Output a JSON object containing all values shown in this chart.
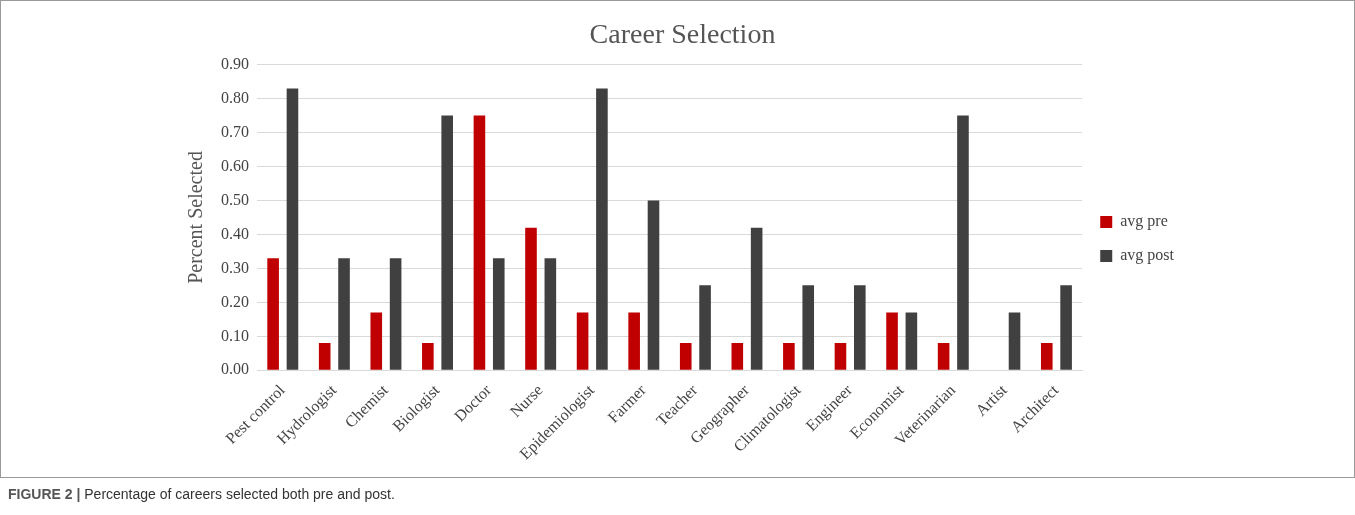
{
  "chart_data": {
    "type": "bar",
    "title": "Career Selection",
    "ylabel": "Percent Selected",
    "categories": [
      "Pest control",
      "Hydrologist",
      "Chemist",
      "Biologist",
      "Doctor",
      "Nurse",
      "Epidemiologist",
      "Farmer",
      "Teacher",
      "Geographer",
      "Climatologist",
      "Engineer",
      "Economist",
      "Veterinarian",
      "Artist",
      "Architect"
    ],
    "series": [
      {
        "name": "avg pre",
        "color": "#c00000",
        "values": [
          0.33,
          0.08,
          0.17,
          0.08,
          0.75,
          0.42,
          0.17,
          0.17,
          0.08,
          0.08,
          0.08,
          0.08,
          0.17,
          0.08,
          0,
          0.08
        ]
      },
      {
        "name": "avg post",
        "color": "#404040",
        "values": [
          0.83,
          0.33,
          0.33,
          0.75,
          0.33,
          0.33,
          0.83,
          0.5,
          0.25,
          0.42,
          0.25,
          0.25,
          0.17,
          0.75,
          0.17,
          0.25
        ]
      }
    ],
    "ylim": [
      0,
      0.9
    ],
    "yticks": [
      {
        "value": 0,
        "label": "0.00"
      },
      {
        "value": 0.1,
        "label": "0.10"
      },
      {
        "value": 0.2,
        "label": "0.20"
      },
      {
        "value": 0.3,
        "label": "0.30"
      },
      {
        "value": 0.4,
        "label": "0.40"
      },
      {
        "value": 0.5,
        "label": "0.50"
      },
      {
        "value": 0.6,
        "label": "0.60"
      },
      {
        "value": 0.7,
        "label": "0.70"
      },
      {
        "value": 0.8,
        "label": "0.80"
      },
      {
        "value": 0.9,
        "label": "0.90"
      }
    ],
    "grid": "y",
    "legend": "right",
    "annotations": [
      "FIGURE 2 | Percentage of careers selected both pre and post."
    ]
  }
}
